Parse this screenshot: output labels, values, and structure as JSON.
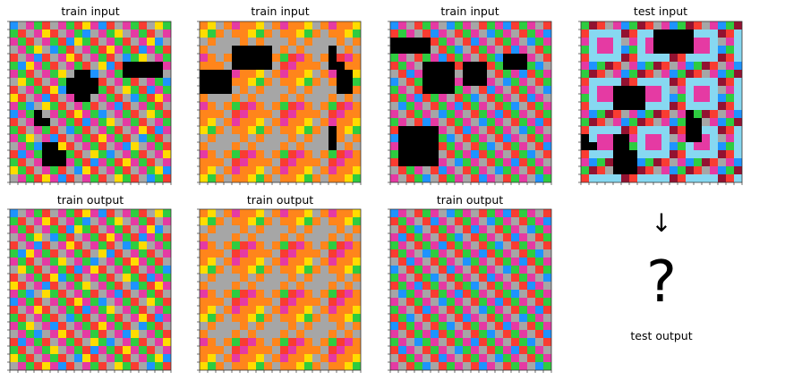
{
  "panels": [
    {
      "id": "p0",
      "title": "train input"
    },
    {
      "id": "p1",
      "title": "train input"
    },
    {
      "id": "p2",
      "title": "train input"
    },
    {
      "id": "p3",
      "title": "test input"
    },
    {
      "id": "p4",
      "title": "train output"
    },
    {
      "id": "p5",
      "title": "train output"
    },
    {
      "id": "p6",
      "title": "train output"
    }
  ],
  "test_output": {
    "arrow": "↓",
    "placeholder": "?",
    "label": "test output"
  },
  "colors": {
    "red": "#f93c31",
    "gray": "#a6a6a6",
    "magenta": "#e53aa3",
    "green": "#2ecc40",
    "blue": "#1e93ff",
    "yellow": "#ffdc00",
    "orange": "#ff851b",
    "maroon": "#921231",
    "skyblue": "#87d8f1",
    "black": "#000000"
  },
  "grids": {
    "note_pattern_A": "red,gray,magenta,green,magenta,gray,red,green | yellow/blue accents",
    "p0": {
      "size": 20,
      "black_cells": [
        [
          5,
          14
        ],
        [
          5,
          15
        ],
        [
          5,
          16
        ],
        [
          5,
          17
        ],
        [
          5,
          18
        ],
        [
          6,
          14
        ],
        [
          6,
          15
        ],
        [
          6,
          16
        ],
        [
          6,
          17
        ],
        [
          6,
          18
        ],
        [
          6,
          8
        ],
        [
          6,
          9
        ],
        [
          7,
          7
        ],
        [
          7,
          8
        ],
        [
          7,
          9
        ],
        [
          7,
          10
        ],
        [
          8,
          7
        ],
        [
          8,
          8
        ],
        [
          8,
          9
        ],
        [
          8,
          10
        ],
        [
          9,
          8
        ],
        [
          9,
          9
        ],
        [
          11,
          3
        ],
        [
          12,
          3
        ],
        [
          12,
          4
        ],
        [
          15,
          4
        ],
        [
          15,
          5
        ],
        [
          16,
          4
        ],
        [
          16,
          5
        ],
        [
          16,
          6
        ],
        [
          17,
          4
        ],
        [
          17,
          5
        ],
        [
          17,
          6
        ]
      ]
    },
    "p1": {
      "size": 20,
      "black_cells": [
        [
          3,
          4
        ],
        [
          3,
          5
        ],
        [
          3,
          6
        ],
        [
          3,
          7
        ],
        [
          3,
          8
        ],
        [
          4,
          4
        ],
        [
          4,
          5
        ],
        [
          4,
          6
        ],
        [
          4,
          7
        ],
        [
          4,
          8
        ],
        [
          5,
          4
        ],
        [
          5,
          5
        ],
        [
          5,
          6
        ],
        [
          5,
          7
        ],
        [
          5,
          8
        ],
        [
          3,
          16
        ],
        [
          4,
          16
        ],
        [
          5,
          16
        ],
        [
          5,
          17
        ],
        [
          6,
          17
        ],
        [
          6,
          18
        ],
        [
          7,
          17
        ],
        [
          7,
          18
        ],
        [
          8,
          17
        ],
        [
          8,
          18
        ],
        [
          6,
          0
        ],
        [
          6,
          1
        ],
        [
          6,
          2
        ],
        [
          6,
          3
        ],
        [
          7,
          0
        ],
        [
          7,
          1
        ],
        [
          7,
          2
        ],
        [
          7,
          3
        ],
        [
          8,
          0
        ],
        [
          8,
          1
        ],
        [
          8,
          2
        ],
        [
          8,
          3
        ],
        [
          13,
          16
        ],
        [
          14,
          16
        ],
        [
          15,
          16
        ]
      ]
    },
    "p2": {
      "size": 20,
      "black_cells": [
        [
          2,
          0
        ],
        [
          2,
          1
        ],
        [
          2,
          2
        ],
        [
          2,
          3
        ],
        [
          2,
          4
        ],
        [
          3,
          0
        ],
        [
          3,
          1
        ],
        [
          3,
          2
        ],
        [
          3,
          3
        ],
        [
          3,
          4
        ],
        [
          4,
          14
        ],
        [
          4,
          15
        ],
        [
          4,
          16
        ],
        [
          5,
          14
        ],
        [
          5,
          15
        ],
        [
          5,
          16
        ],
        [
          5,
          4
        ],
        [
          5,
          5
        ],
        [
          5,
          6
        ],
        [
          5,
          7
        ],
        [
          5,
          9
        ],
        [
          5,
          10
        ],
        [
          5,
          11
        ],
        [
          6,
          4
        ],
        [
          6,
          5
        ],
        [
          6,
          6
        ],
        [
          6,
          7
        ],
        [
          6,
          9
        ],
        [
          6,
          10
        ],
        [
          6,
          11
        ],
        [
          7,
          4
        ],
        [
          7,
          5
        ],
        [
          7,
          6
        ],
        [
          7,
          7
        ],
        [
          7,
          9
        ],
        [
          7,
          10
        ],
        [
          7,
          11
        ],
        [
          8,
          4
        ],
        [
          8,
          5
        ],
        [
          8,
          6
        ],
        [
          8,
          7
        ],
        [
          13,
          1
        ],
        [
          13,
          2
        ],
        [
          13,
          3
        ],
        [
          13,
          4
        ],
        [
          13,
          5
        ],
        [
          14,
          1
        ],
        [
          14,
          2
        ],
        [
          14,
          3
        ],
        [
          14,
          4
        ],
        [
          14,
          5
        ],
        [
          15,
          1
        ],
        [
          15,
          2
        ],
        [
          15,
          3
        ],
        [
          15,
          4
        ],
        [
          15,
          5
        ],
        [
          16,
          1
        ],
        [
          16,
          2
        ],
        [
          16,
          3
        ],
        [
          16,
          4
        ],
        [
          16,
          5
        ],
        [
          17,
          1
        ],
        [
          17,
          2
        ],
        [
          17,
          3
        ],
        [
          17,
          4
        ],
        [
          17,
          5
        ]
      ]
    },
    "p3": {
      "size": 20,
      "black_cells": [
        [
          1,
          9
        ],
        [
          1,
          10
        ],
        [
          1,
          11
        ],
        [
          1,
          12
        ],
        [
          1,
          13
        ],
        [
          2,
          9
        ],
        [
          2,
          10
        ],
        [
          2,
          11
        ],
        [
          2,
          12
        ],
        [
          2,
          13
        ],
        [
          3,
          9
        ],
        [
          3,
          10
        ],
        [
          3,
          11
        ],
        [
          3,
          12
        ],
        [
          3,
          13
        ],
        [
          8,
          4
        ],
        [
          8,
          5
        ],
        [
          8,
          6
        ],
        [
          8,
          7
        ],
        [
          9,
          4
        ],
        [
          9,
          5
        ],
        [
          9,
          6
        ],
        [
          9,
          7
        ],
        [
          10,
          4
        ],
        [
          10,
          5
        ],
        [
          10,
          6
        ],
        [
          10,
          7
        ],
        [
          11,
          13
        ],
        [
          12,
          13
        ],
        [
          12,
          14
        ],
        [
          13,
          13
        ],
        [
          13,
          14
        ],
        [
          14,
          13
        ],
        [
          14,
          14
        ],
        [
          14,
          0
        ],
        [
          15,
          0
        ],
        [
          15,
          1
        ],
        [
          14,
          4
        ],
        [
          14,
          5
        ],
        [
          15,
          4
        ],
        [
          15,
          5
        ],
        [
          16,
          4
        ],
        [
          16,
          5
        ],
        [
          16,
          6
        ],
        [
          17,
          4
        ],
        [
          17,
          5
        ],
        [
          17,
          6
        ],
        [
          18,
          4
        ],
        [
          18,
          5
        ],
        [
          18,
          6
        ]
      ]
    }
  }
}
